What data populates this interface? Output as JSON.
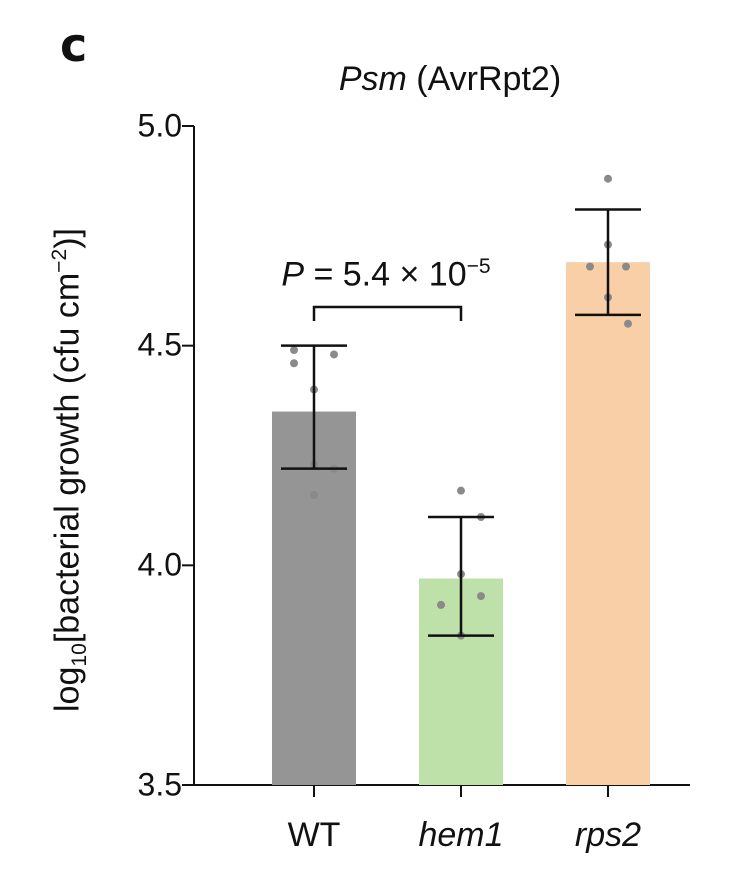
{
  "panel_label": "c",
  "chart_data": {
    "type": "bar",
    "title_italic": "Psm",
    "title_rest": " (AvrRpt2)",
    "ylabel_main": "log",
    "ylabel_sub": "10",
    "ylabel_mid": "[bacterial growth (cfu cm",
    "ylabel_sup": "−2",
    "ylabel_end": ")]",
    "ylim": [
      3.5,
      5.0
    ],
    "yticks": [
      "3.5",
      "4.0",
      "4.5",
      "5.0"
    ],
    "categories": [
      "WT",
      "hem1",
      "rps2"
    ],
    "italic_categories": [
      false,
      true,
      true
    ],
    "values": [
      4.35,
      3.97,
      4.69
    ],
    "error_low": [
      4.22,
      3.84,
      4.57
    ],
    "error_high": [
      4.5,
      4.11,
      4.81
    ],
    "points": [
      [
        4.49,
        4.48,
        4.46,
        4.4,
        4.23,
        4.22,
        4.16
      ],
      [
        4.17,
        4.11,
        3.98,
        3.93,
        3.91,
        3.84
      ],
      [
        4.88,
        4.73,
        4.68,
        4.68,
        4.61,
        4.55
      ]
    ],
    "colors": [
      "#959595",
      "#bde1a9",
      "#f8cfa6"
    ],
    "point_color": "#8a8a8a",
    "annotation": {
      "p_symbol": "P",
      "p_text": " = 5.4 × 10",
      "p_exp": "−5",
      "between": [
        0,
        1
      ]
    }
  }
}
